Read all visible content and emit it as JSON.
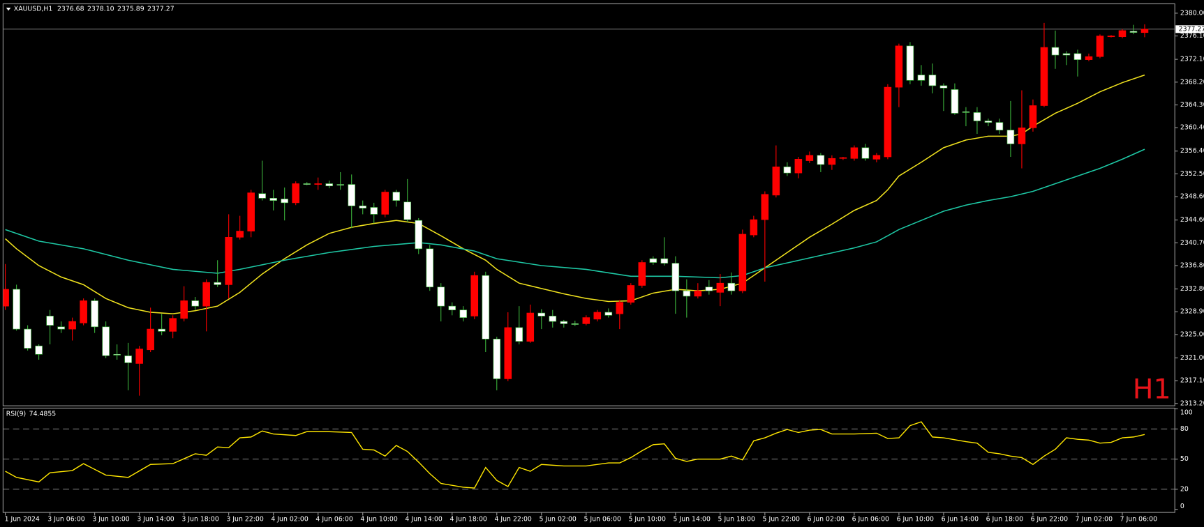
{
  "chart_data": {
    "type": "candlestick",
    "title": "XAUUSD,H1",
    "title_values": [
      "2376.68",
      "2378.10",
      "2375.89",
      "2377.27"
    ],
    "watermark": "H1",
    "watermark_color": "#e8141a",
    "up_color": "#ff0000",
    "down_color": "#ffffff",
    "down_wick_color": "#3cb43c",
    "xlim": [
      -0.2,
      104.7
    ],
    "ylim": [
      2312.8,
      2381.6
    ],
    "yticks": [
      {
        "value": 2380,
        "label": "2380.00"
      },
      {
        "value": 2376.1,
        "label": "2376.10"
      },
      {
        "value": 2372.1,
        "label": "2372.10"
      },
      {
        "value": 2368.2,
        "label": "2368.20"
      },
      {
        "value": 2364.3,
        "label": "2364.30"
      },
      {
        "value": 2360.4,
        "label": "2360.40"
      },
      {
        "value": 2356.4,
        "label": "2356.40"
      },
      {
        "value": 2352.5,
        "label": "2352.50"
      },
      {
        "value": 2348.6,
        "label": "2348.60"
      },
      {
        "value": 2344.6,
        "label": "2344.60"
      },
      {
        "value": 2340.7,
        "label": "2340.70"
      },
      {
        "value": 2336.8,
        "label": "2336.80"
      },
      {
        "value": 2332.8,
        "label": "2332.80"
      },
      {
        "value": 2328.9,
        "label": "2328.90"
      },
      {
        "value": 2325,
        "label": "2325.00"
      },
      {
        "value": 2321,
        "label": "2321.00"
      },
      {
        "value": 2317.1,
        "label": "2317.10"
      },
      {
        "value": 2313.2,
        "label": "2313.20"
      }
    ],
    "last_price": 2377.27,
    "xticks": [
      {
        "value": 0,
        "label": "1 Jun 2024"
      },
      {
        "value": 4,
        "label": "3 Jun 06:00"
      },
      {
        "value": 8,
        "label": "3 Jun 10:00"
      },
      {
        "value": 12,
        "label": "3 Jun 14:00"
      },
      {
        "value": 16,
        "label": "3 Jun 18:00"
      },
      {
        "value": 20,
        "label": "3 Jun 22:00"
      },
      {
        "value": 24,
        "label": "4 Jun 02:00"
      },
      {
        "value": 28,
        "label": "4 Jun 06:00"
      },
      {
        "value": 32,
        "label": "4 Jun 10:00"
      },
      {
        "value": 36,
        "label": "4 Jun 14:00"
      },
      {
        "value": 40,
        "label": "4 Jun 18:00"
      },
      {
        "value": 44,
        "label": "4 Jun 22:00"
      },
      {
        "value": 48,
        "label": "5 Jun 02:00"
      },
      {
        "value": 52,
        "label": "5 Jun 06:00"
      },
      {
        "value": 56,
        "label": "5 Jun 10:00"
      },
      {
        "value": 60,
        "label": "5 Jun 14:00"
      },
      {
        "value": 64,
        "label": "5 Jun 18:00"
      },
      {
        "value": 68,
        "label": "5 Jun 22:00"
      },
      {
        "value": 72,
        "label": "6 Jun 02:00"
      },
      {
        "value": 76,
        "label": "6 Jun 06:00"
      },
      {
        "value": 80,
        "label": "6 Jun 10:00"
      },
      {
        "value": 84,
        "label": "6 Jun 14:00"
      },
      {
        "value": 88,
        "label": "6 Jun 18:00"
      },
      {
        "value": 92,
        "label": "6 Jun 22:00"
      },
      {
        "value": 96,
        "label": "7 Jun 02:00"
      },
      {
        "value": 100,
        "label": "7 Jun 06:00"
      }
    ],
    "open": [
      2329.86,
      2332.74,
      2325.93,
      2323.05,
      2328.16,
      2326.32,
      2325.93,
      2326.98,
      2330.78,
      2326.32,
      2321.61,
      2321.35,
      2320.04,
      2322.39,
      2325.93,
      2325.54,
      2327.76,
      2330.78,
      2329.86,
      2333.92,
      2333.53,
      2341.65,
      2342.7,
      2349.12,
      2348.33,
      2348.2,
      2347.55,
      2350.82,
      2350.69,
      2350.82,
      2350.69,
      2350.69,
      2347.02,
      2346.76,
      2345.58,
      2349.38,
      2347.68,
      2344.53,
      2339.68,
      2333.13,
      2329.86,
      2329.2,
      2328.16,
      2335.1,
      2324.23,
      2317.42,
      2326.19,
      2323.83,
      2328.68,
      2328.16,
      2327.24,
      2326.85,
      2326.85,
      2327.63,
      2328.81,
      2328.55,
      2330.51,
      2333.4,
      2337.98,
      2337.98,
      2337.2,
      2332.48,
      2331.56,
      2333.13,
      2332.22,
      2333.79,
      2332.48,
      2342.04,
      2344.66,
      2348.86,
      2353.7,
      2352.65,
      2354.75,
      2355.67,
      2354.1,
      2355.14,
      2355.14,
      2356.98,
      2355.01,
      2355.41,
      2367.33,
      2374.4,
      2369.42,
      2369.42,
      2367.59,
      2366.93,
      2363.13,
      2363.0,
      2361.56,
      2361.3,
      2359.99,
      2357.63,
      2360.38,
      2364.18,
      2374.14,
      2373.09,
      2373.09,
      2372.04,
      2372.57,
      2375.97,
      2375.97,
      2376.9,
      2376.68
    ],
    "high": [
      2337.07,
      2333.53,
      2326.58,
      2323.31,
      2329.2,
      2327.24,
      2327.9,
      2331.17,
      2331.17,
      2327.24,
      2323.31,
      2323.57,
      2323.05,
      2329.6,
      2328.55,
      2328.29,
      2333.27,
      2331.43,
      2334.45,
      2337.72,
      2345.58,
      2345.32,
      2349.77,
      2354.75,
      2349.77,
      2350.16,
      2351.21,
      2351.08,
      2351.87,
      2351.34,
      2352.79,
      2352.39,
      2347.94,
      2347.55,
      2349.77,
      2349.77,
      2351.61,
      2344.92,
      2340.34,
      2333.79,
      2330.51,
      2329.86,
      2335.75,
      2335.75,
      2324.62,
      2328.81,
      2329.86,
      2330.12,
      2329.34,
      2329.2,
      2327.5,
      2327.37,
      2328.29,
      2329.2,
      2329.47,
      2330.91,
      2333.79,
      2337.72,
      2338.39,
      2341.65,
      2338.39,
      2334.45,
      2333.79,
      2334.31,
      2335.36,
      2335.62,
      2342.96,
      2345.32,
      2349.51,
      2357.37,
      2354.49,
      2355.41,
      2356.32,
      2356.06,
      2355.67,
      2355.41,
      2357.37,
      2357.63,
      2356.06,
      2367.85,
      2374.79,
      2375.06,
      2371.12,
      2371.39,
      2367.98,
      2367.98,
      2363.92,
      2363.92,
      2361.95,
      2361.95,
      2364.97,
      2366.8,
      2365.23,
      2378.33,
      2377.02,
      2373.48,
      2373.75,
      2373.09,
      2376.37,
      2376.24,
      2377.28,
      2378.0,
      2378.1
    ],
    "low": [
      2329.2,
      2325.67,
      2322.26,
      2320.69,
      2323.31,
      2325.27,
      2323.97,
      2326.58,
      2325.27,
      2320.95,
      2320.69,
      2315.45,
      2314.53,
      2322.0,
      2324.88,
      2324.36,
      2327.24,
      2329.2,
      2325.54,
      2333.13,
      2331.17,
      2341.26,
      2341.65,
      2347.94,
      2346.24,
      2344.53,
      2347.15,
      2350.56,
      2349.77,
      2350.03,
      2349.77,
      2343.22,
      2345.58,
      2344.01,
      2345.06,
      2346.89,
      2344.27,
      2338.77,
      2332.48,
      2327.24,
      2328.29,
      2327.24,
      2327.63,
      2322.0,
      2315.45,
      2317.02,
      2323.31,
      2323.57,
      2325.93,
      2326.19,
      2326.19,
      2326.45,
      2326.58,
      2327.24,
      2327.9,
      2325.93,
      2330.12,
      2333.0,
      2336.93,
      2336.8,
      2328.55,
      2327.9,
      2331.17,
      2331.83,
      2329.86,
      2331.83,
      2332.09,
      2341.65,
      2334.05,
      2348.46,
      2352.13,
      2351.74,
      2354.36,
      2352.79,
      2353.18,
      2354.88,
      2354.75,
      2354.75,
      2354.49,
      2355.01,
      2363.92,
      2367.85,
      2367.59,
      2366.28,
      2363.26,
      2362.61,
      2360.65,
      2359.34,
      2360.65,
      2359.34,
      2355.41,
      2353.44,
      2359.73,
      2363.92,
      2370.47,
      2371.12,
      2369.16,
      2371.78,
      2372.3,
      2375.84,
      2375.71,
      2376.4,
      2375.89
    ],
    "close": [
      2332.74,
      2325.93,
      2322.65,
      2321.61,
      2326.58,
      2325.93,
      2327.24,
      2330.78,
      2326.32,
      2321.38,
      2321.48,
      2320.17,
      2322.52,
      2325.93,
      2325.54,
      2327.76,
      2330.78,
      2329.86,
      2333.92,
      2333.53,
      2341.65,
      2342.7,
      2349.25,
      2348.33,
      2347.94,
      2347.55,
      2350.82,
      2350.69,
      2350.82,
      2350.43,
      2350.56,
      2347.02,
      2346.63,
      2345.58,
      2349.38,
      2347.94,
      2344.66,
      2339.68,
      2333.13,
      2329.86,
      2329.2,
      2327.9,
      2335.1,
      2324.23,
      2317.42,
      2326.19,
      2323.83,
      2328.68,
      2328.16,
      2327.24,
      2326.85,
      2326.72,
      2327.9,
      2328.81,
      2328.29,
      2330.51,
      2333.4,
      2337.33,
      2337.33,
      2337.2,
      2332.48,
      2331.56,
      2332.48,
      2332.48,
      2333.79,
      2332.48,
      2342.17,
      2344.66,
      2348.99,
      2353.7,
      2352.65,
      2355.01,
      2355.67,
      2354.1,
      2355.14,
      2355.28,
      2356.98,
      2355.14,
      2355.67,
      2367.33,
      2374.4,
      2368.5,
      2368.5,
      2367.59,
      2367.19,
      2362.87,
      2363.0,
      2361.56,
      2361.3,
      2359.99,
      2357.63,
      2360.38,
      2364.18,
      2374.14,
      2372.83,
      2372.83,
      2372.04,
      2372.57,
      2376.1,
      2376.1,
      2377.02,
      2376.7,
      2377.27
    ],
    "overlays": [
      {
        "type": "line",
        "color": "#f0e21e",
        "x": [
          0,
          1,
          3,
          5,
          7,
          9,
          11,
          13,
          15,
          17,
          19,
          21,
          23,
          25,
          27,
          29,
          31,
          33,
          35,
          37,
          39,
          41,
          43,
          44,
          46,
          48,
          50,
          52,
          54,
          56,
          58,
          60,
          62,
          64,
          66,
          68,
          70,
          72,
          74,
          76,
          78,
          79,
          80,
          82,
          84,
          86,
          88,
          90,
          91,
          92,
          94,
          96,
          98,
          100,
          102
        ],
        "values": [
          2341.39,
          2339.68,
          2336.8,
          2334.84,
          2333.53,
          2331.17,
          2329.6,
          2328.81,
          2328.55,
          2329.07,
          2329.86,
          2332.22,
          2335.36,
          2337.98,
          2340.34,
          2342.31,
          2343.35,
          2344.01,
          2344.53,
          2344.01,
          2341.91,
          2339.68,
          2337.72,
          2336.15,
          2333.79,
          2332.87,
          2331.96,
          2331.17,
          2330.65,
          2330.78,
          2332.09,
          2332.74,
          2332.48,
          2332.74,
          2333.79,
          2336.41,
          2339.03,
          2341.65,
          2343.88,
          2346.24,
          2347.94,
          2349.77,
          2352.13,
          2354.49,
          2356.98,
          2358.29,
          2358.94,
          2358.94,
          2359.34,
          2360.65,
          2362.87,
          2364.57,
          2366.54,
          2368.11,
          2369.42
        ]
      },
      {
        "type": "line",
        "color": "#1ec8a5",
        "x": [
          0,
          3,
          7,
          11,
          15,
          19,
          21,
          25,
          29,
          33,
          37,
          39,
          42,
          44,
          48,
          52,
          56,
          60,
          64,
          66,
          68,
          72,
          76,
          78,
          80,
          82,
          84,
          86,
          88,
          90,
          92,
          94,
          96,
          98,
          100,
          102
        ],
        "values": [
          2342.96,
          2340.99,
          2339.68,
          2337.72,
          2336.15,
          2335.49,
          2336.15,
          2337.72,
          2339.03,
          2340.08,
          2340.73,
          2340.34,
          2339.29,
          2337.98,
          2336.8,
          2336.15,
          2334.97,
          2334.97,
          2334.71,
          2335.1,
          2336.41,
          2338.11,
          2339.82,
          2340.86,
          2342.96,
          2344.53,
          2346.1,
          2347.15,
          2347.94,
          2348.59,
          2349.51,
          2350.82,
          2352.13,
          2353.44,
          2355.01,
          2356.71
        ]
      }
    ],
    "indicator": {
      "type": "line",
      "title": "RSI(9)",
      "color": "#ffe600",
      "ylim": [
        0,
        100
      ],
      "yticks": [
        100,
        80,
        50,
        20,
        0
      ],
      "levels": [
        80,
        50,
        20
      ],
      "x": [
        0,
        1,
        3,
        4,
        6,
        7,
        9,
        11,
        13,
        15,
        17,
        18,
        19,
        20,
        21,
        22,
        23,
        24,
        26,
        27,
        29,
        31,
        32,
        33,
        34,
        35,
        36,
        37,
        38,
        39,
        41,
        42,
        43,
        44,
        45,
        46,
        47,
        48,
        50,
        52,
        54,
        55,
        56,
        57,
        58,
        59,
        60,
        61,
        62,
        64,
        65,
        66,
        67,
        68,
        69,
        70,
        71,
        72,
        73,
        74,
        76,
        78,
        79,
        80,
        81,
        82,
        83,
        84,
        86,
        87,
        88,
        89,
        90,
        91,
        92,
        93,
        94,
        95,
        96,
        97,
        98,
        99,
        100,
        101,
        102
      ],
      "values": [
        37.9,
        31.8,
        27.3,
        36.4,
        38.6,
        45.5,
        34.1,
        31.8,
        44.7,
        45.5,
        55.3,
        53.8,
        62.1,
        61.4,
        71.2,
        72.0,
        78.0,
        75.0,
        73.5,
        77.3,
        77.3,
        76.5,
        59.8,
        59.1,
        53.0,
        63.6,
        57.6,
        47.0,
        35.6,
        25.8,
        22.0,
        21.2,
        41.7,
        28.8,
        22.7,
        41.7,
        37.9,
        44.7,
        43.2,
        43.2,
        46.2,
        46.2,
        51.5,
        58.3,
        64.4,
        65.2,
        50.8,
        47.7,
        50.0,
        50.0,
        53.0,
        49.2,
        68.2,
        71.2,
        75.8,
        79.5,
        76.5,
        78.8,
        79.5,
        75.0,
        75.0,
        75.8,
        70.5,
        71.2,
        83.3,
        87.1,
        72.0,
        71.2,
        67.4,
        65.9,
        56.8,
        55.3,
        53.0,
        51.5,
        44.7,
        53.0,
        59.8,
        71.2,
        69.7,
        68.9,
        65.9,
        66.7,
        71.2,
        72.0,
        74.4855
      ]
    }
  }
}
